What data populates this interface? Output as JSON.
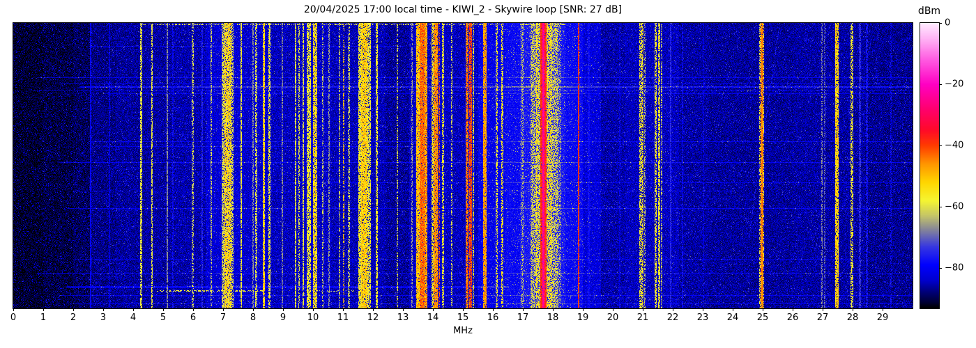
{
  "title": "20/04/2025 17:00 local time - KIWI_2 - Skywire loop [SNR: 27 dB]",
  "xlabel": "MHz",
  "axis": {
    "x_tick_labels": [
      "0",
      "1",
      "2",
      "3",
      "4",
      "5",
      "6",
      "7",
      "8",
      "9",
      "10",
      "11",
      "12",
      "13",
      "14",
      "15",
      "16",
      "17",
      "18",
      "19",
      "20",
      "21",
      "22",
      "23",
      "24",
      "25",
      "26",
      "27",
      "28",
      "29"
    ],
    "x_min": 0,
    "x_max": 30
  },
  "colorbar": {
    "label": "dBm",
    "tick_labels": [
      "0",
      "−20",
      "−40",
      "−60",
      "−80"
    ],
    "tick_values": [
      0,
      -20,
      -40,
      -60,
      -80
    ],
    "v_max": 0,
    "v_min": -93
  },
  "chart_data": {
    "type": "heatmap",
    "title": "20/04/2025 17:00 local time - KIWI_2 - Skywire loop [SNR: 27 dB]",
    "xlabel": "MHz",
    "x_range": [
      0,
      30
    ],
    "y_axis": "time (no labels, newest rows at bottom)",
    "value_unit": "dBm",
    "value_range": [
      -93,
      0
    ],
    "noise_seed": 7,
    "colormap_stops": [
      [
        0,
        255,
        235,
        255
      ],
      [
        -5,
        255,
        180,
        245
      ],
      [
        -12,
        255,
        90,
        225
      ],
      [
        -20,
        255,
        0,
        195
      ],
      [
        -28,
        255,
        0,
        110
      ],
      [
        -35,
        255,
        10,
        40
      ],
      [
        -40,
        255,
        60,
        0
      ],
      [
        -46,
        255,
        150,
        0
      ],
      [
        -52,
        255,
        215,
        0
      ],
      [
        -58,
        245,
        245,
        50
      ],
      [
        -63,
        195,
        195,
        105
      ],
      [
        -68,
        125,
        125,
        160
      ],
      [
        -73,
        55,
        55,
        225
      ],
      [
        -79,
        0,
        0,
        255
      ],
      [
        -84,
        0,
        0,
        205
      ],
      [
        -88,
        0,
        0,
        115
      ],
      [
        -91,
        0,
        0,
        55
      ],
      [
        -93,
        0,
        0,
        0
      ]
    ],
    "noise_profile": [
      [
        0,
        1.0,
        -91.5
      ],
      [
        1.0,
        2.0,
        -90.5
      ],
      [
        2.0,
        2.6,
        -89.5
      ],
      [
        2.6,
        3.4,
        -87.5
      ],
      [
        3.4,
        4.4,
        -86.5
      ],
      [
        4.4,
        5.4,
        -86
      ],
      [
        5.4,
        6.4,
        -85.5
      ],
      [
        6.4,
        7.6,
        -83
      ],
      [
        7.6,
        8.6,
        -83.5
      ],
      [
        8.6,
        9.6,
        -84.5
      ],
      [
        9.6,
        10.6,
        -84
      ],
      [
        10.6,
        11.4,
        -85
      ],
      [
        11.4,
        12.4,
        -85
      ],
      [
        12.4,
        13.2,
        -86.5
      ],
      [
        13.2,
        14.6,
        -84
      ],
      [
        14.6,
        15.5,
        -84.5
      ],
      [
        15.5,
        16.4,
        -81
      ],
      [
        16.4,
        16.9,
        -79
      ],
      [
        16.9,
        18.4,
        -76.5
      ],
      [
        18.4,
        19.0,
        -79
      ],
      [
        19.0,
        19.6,
        -82.5
      ],
      [
        19.6,
        20.4,
        -85.5
      ],
      [
        20.4,
        22.2,
        -84.5
      ],
      [
        22.2,
        23.2,
        -86
      ],
      [
        23.2,
        26.0,
        -86.5
      ],
      [
        26.0,
        28.4,
        -86
      ],
      [
        28.4,
        30,
        -87
      ]
    ],
    "vertical_bands": [
      [
        2.555,
        2.585,
        -79,
        2,
        0.95
      ],
      [
        3.175,
        3.205,
        -81,
        2,
        0.7
      ],
      [
        4.24,
        4.27,
        -59,
        4,
        0.75
      ],
      [
        4.6,
        4.63,
        -59,
        4,
        0.7
      ],
      [
        5.11,
        5.14,
        -67,
        3,
        0.8
      ],
      [
        5.3,
        5.33,
        -78,
        3,
        0.6
      ],
      [
        5.95,
        5.99,
        -62,
        5,
        0.5
      ],
      [
        6.28,
        6.31,
        -76,
        4,
        0.8
      ],
      [
        6.58,
        6.61,
        -62,
        5,
        0.55
      ],
      [
        6.95,
        7.05,
        -60,
        6,
        0.7
      ],
      [
        7.05,
        7.25,
        -54,
        8,
        0.85
      ],
      [
        7.28,
        7.32,
        -60,
        4,
        0.6
      ],
      [
        7.58,
        7.61,
        -57,
        4,
        0.8
      ],
      [
        7.98,
        8.01,
        -67,
        3,
        0.7
      ],
      [
        8.08,
        8.11,
        -60,
        4,
        0.6
      ],
      [
        8.32,
        8.37,
        -52,
        6,
        0.85
      ],
      [
        8.52,
        8.55,
        -58,
        4,
        0.7
      ],
      [
        8.95,
        8.98,
        -67,
        3,
        0.6
      ],
      [
        9.4,
        9.43,
        -58,
        4,
        0.75
      ],
      [
        9.5,
        9.53,
        -60,
        4,
        0.6
      ],
      [
        9.65,
        9.68,
        -58,
        4,
        0.7
      ],
      [
        9.8,
        9.9,
        -57,
        5,
        0.75
      ],
      [
        10.0,
        10.12,
        -54,
        7,
        0.8
      ],
      [
        10.3,
        10.33,
        -62,
        4,
        0.5
      ],
      [
        10.51,
        10.54,
        -66,
        3,
        0.6
      ],
      [
        10.85,
        10.88,
        -62,
        4,
        0.5
      ],
      [
        10.99,
        11.02,
        -50,
        5,
        0.5
      ],
      [
        11.17,
        11.2,
        -62,
        4,
        0.5
      ],
      [
        11.5,
        11.6,
        -57,
        5,
        0.8
      ],
      [
        11.6,
        11.8,
        -52,
        6,
        0.9
      ],
      [
        11.8,
        11.9,
        -58,
        5,
        0.7
      ],
      [
        12.1,
        12.14,
        -57,
        4,
        0.7
      ],
      [
        12.78,
        12.81,
        -60,
        4,
        0.5
      ],
      [
        13.28,
        13.31,
        -66,
        3,
        0.6
      ],
      [
        13.45,
        13.55,
        -50,
        6,
        0.9
      ],
      [
        13.55,
        13.7,
        -43,
        5,
        0.95
      ],
      [
        13.7,
        13.8,
        -47,
        6,
        0.9
      ],
      [
        13.95,
        14.0,
        -55,
        5,
        0.7
      ],
      [
        14.03,
        14.13,
        -46,
        5,
        0.9
      ],
      [
        14.18,
        14.22,
        -42,
        6,
        0.55
      ],
      [
        14.3,
        14.34,
        -57,
        5,
        0.6
      ],
      [
        14.6,
        14.63,
        -60,
        4,
        0.5
      ],
      [
        15.1,
        15.16,
        -44,
        6,
        0.8
      ],
      [
        15.22,
        15.27,
        -40,
        5,
        0.85
      ],
      [
        15.33,
        15.36,
        -55,
        5,
        0.6
      ],
      [
        15.68,
        15.76,
        -47,
        5,
        0.9
      ],
      [
        16.1,
        16.14,
        -57,
        5,
        0.55
      ],
      [
        16.28,
        16.32,
        -56,
        5,
        0.6
      ],
      [
        16.95,
        17.0,
        -62,
        5,
        0.5
      ],
      [
        17.25,
        17.45,
        -60,
        7,
        0.6
      ],
      [
        17.45,
        17.58,
        -56,
        7,
        0.7
      ],
      [
        17.58,
        17.64,
        -38,
        4,
        0.95
      ],
      [
        17.645,
        17.7,
        -24,
        3,
        1.0
      ],
      [
        17.7,
        17.76,
        -38,
        4,
        0.95
      ],
      [
        17.76,
        17.95,
        -56,
        7,
        0.7
      ],
      [
        17.95,
        18.15,
        -60,
        7,
        0.6
      ],
      [
        18.15,
        18.25,
        -64,
        6,
        0.4
      ],
      [
        18.83,
        18.87,
        -39,
        4,
        0.95
      ],
      [
        19.17,
        19.2,
        -78,
        3,
        0.8
      ],
      [
        20.2,
        20.23,
        -80,
        3,
        0.6
      ],
      [
        20.88,
        20.92,
        -58,
        5,
        0.6
      ],
      [
        20.95,
        21.0,
        -55,
        6,
        0.65
      ],
      [
        21.05,
        21.08,
        -63,
        5,
        0.5
      ],
      [
        21.4,
        21.44,
        -57,
        5,
        0.65
      ],
      [
        21.5,
        21.56,
        -56,
        5,
        0.7
      ],
      [
        21.6,
        21.63,
        -62,
        5,
        0.5
      ],
      [
        21.9,
        21.93,
        -75,
        3,
        0.8
      ],
      [
        22.3,
        22.33,
        -78,
        3,
        0.6
      ],
      [
        23.0,
        23.03,
        -80,
        3,
        0.5
      ],
      [
        24.88,
        24.91,
        -60,
        4,
        0.5
      ],
      [
        24.93,
        24.99,
        -45,
        4,
        0.95
      ],
      [
        24.99,
        25.02,
        -58,
        5,
        0.5
      ],
      [
        26.95,
        26.98,
        -68,
        3,
        0.6
      ],
      [
        27.05,
        27.08,
        -70,
        3,
        0.5
      ],
      [
        27.42,
        27.5,
        -52,
        6,
        0.85
      ],
      [
        27.93,
        27.99,
        -57,
        5,
        0.6
      ],
      [
        28.22,
        28.25,
        -74,
        3,
        0.7
      ],
      [
        28.45,
        28.48,
        -77,
        3,
        0.6
      ],
      [
        29.25,
        29.28,
        -78,
        3,
        0.5
      ]
    ],
    "horizontal_events": [
      {
        "y": 0.002,
        "h": 2,
        "x0": 4.3,
        "x1": 16.3,
        "level": -60,
        "fill": 0.4
      },
      {
        "y": 0.002,
        "h": 2,
        "x0": 16.9,
        "x1": 18.4,
        "level": -58,
        "fill": 0.5
      },
      {
        "y": 0.08,
        "h": 1,
        "x0": 2.5,
        "x1": 13,
        "boost": 5
      },
      {
        "y": 0.19,
        "h": 1,
        "x0": 0.8,
        "x1": 30,
        "boost": 6
      },
      {
        "y": 0.21,
        "h": 1,
        "x0": 1.5,
        "x1": 30,
        "boost": 5
      },
      {
        "y": 0.222,
        "h": 2,
        "x0": 2.2,
        "x1": 30,
        "boost": 9
      },
      {
        "y": 0.235,
        "h": 1,
        "x0": 0.5,
        "x1": 30,
        "boost": 6
      },
      {
        "y": 0.248,
        "h": 1,
        "x0": 3,
        "x1": 30,
        "boost": 5
      },
      {
        "y": 0.3,
        "h": 1,
        "x0": 5,
        "x1": 18,
        "boost": 4
      },
      {
        "y": 0.415,
        "h": 1,
        "x0": 2.5,
        "x1": 30,
        "boost": 6
      },
      {
        "y": 0.432,
        "h": 1,
        "x0": 3,
        "x1": 14,
        "boost": 5
      },
      {
        "y": 0.49,
        "h": 1,
        "x0": 1.5,
        "x1": 30,
        "boost": 7
      },
      {
        "y": 0.56,
        "h": 1,
        "x0": 9,
        "x1": 30,
        "boost": 5
      },
      {
        "y": 0.59,
        "h": 1,
        "x0": 2,
        "x1": 24,
        "boost": 5
      },
      {
        "y": 0.65,
        "h": 1,
        "x0": 1.8,
        "x1": 30,
        "boost": 6
      },
      {
        "y": 0.71,
        "h": 1,
        "x0": 4,
        "x1": 20,
        "boost": 4
      },
      {
        "y": 0.83,
        "h": 1,
        "x0": 2,
        "x1": 28,
        "boost": 5
      },
      {
        "y": 0.878,
        "h": 1,
        "x0": 0.8,
        "x1": 30,
        "boost": 7
      },
      {
        "y": 0.925,
        "h": 3,
        "x0": 1.8,
        "x1": 16.5,
        "boost": 6
      },
      {
        "y": 0.938,
        "h": 2,
        "x0": 4.8,
        "x1": 8.3,
        "level": -58,
        "fill": 0.45
      },
      {
        "y": 0.938,
        "h": 2,
        "x0": 9.8,
        "x1": 11.6,
        "level": -62,
        "fill": 0.25
      },
      {
        "y": 0.955,
        "h": 1,
        "x0": 1.5,
        "x1": 30,
        "boost": 6
      },
      {
        "y": 0.985,
        "h": 1,
        "x0": 2,
        "x1": 30,
        "boost": 6
      }
    ],
    "diagonal": {
      "f_start": 25.56,
      "frac_start": 0.0,
      "f_end": 24.53,
      "frac_end": 0.75,
      "level": -76,
      "fill": 0.5
    }
  }
}
